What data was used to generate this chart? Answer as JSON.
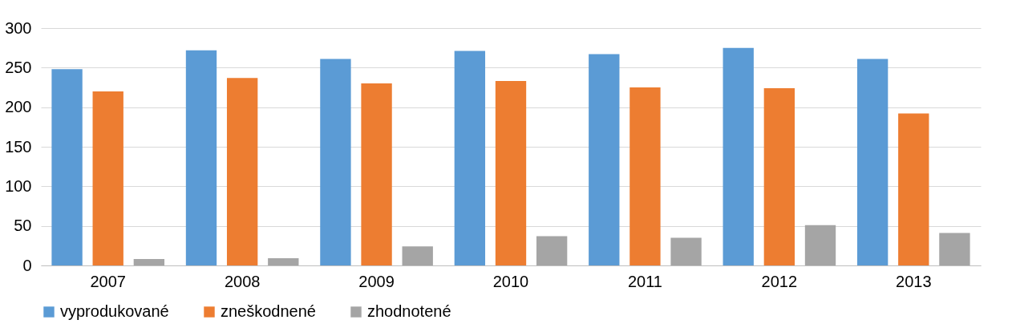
{
  "chart_data": {
    "type": "bar",
    "categories": [
      "2007",
      "2008",
      "2009",
      "2010",
      "2011",
      "2012",
      "2013"
    ],
    "series": [
      {
        "name": "vyprodukované",
        "color": "#5b9bd5",
        "values": [
          248,
          272,
          261,
          271,
          267,
          275,
          261
        ]
      },
      {
        "name": "zneškodnené",
        "color": "#ed7d31",
        "values": [
          220,
          237,
          230,
          233,
          225,
          224,
          192
        ]
      },
      {
        "name": "zhodnotené",
        "color": "#a5a5a5",
        "values": [
          8,
          9,
          24,
          37,
          35,
          51,
          41
        ]
      }
    ],
    "ylim": [
      0,
      300
    ],
    "yticks": [
      0,
      50,
      100,
      150,
      200,
      250,
      300
    ],
    "grid": "y",
    "legend": "bottom"
  }
}
